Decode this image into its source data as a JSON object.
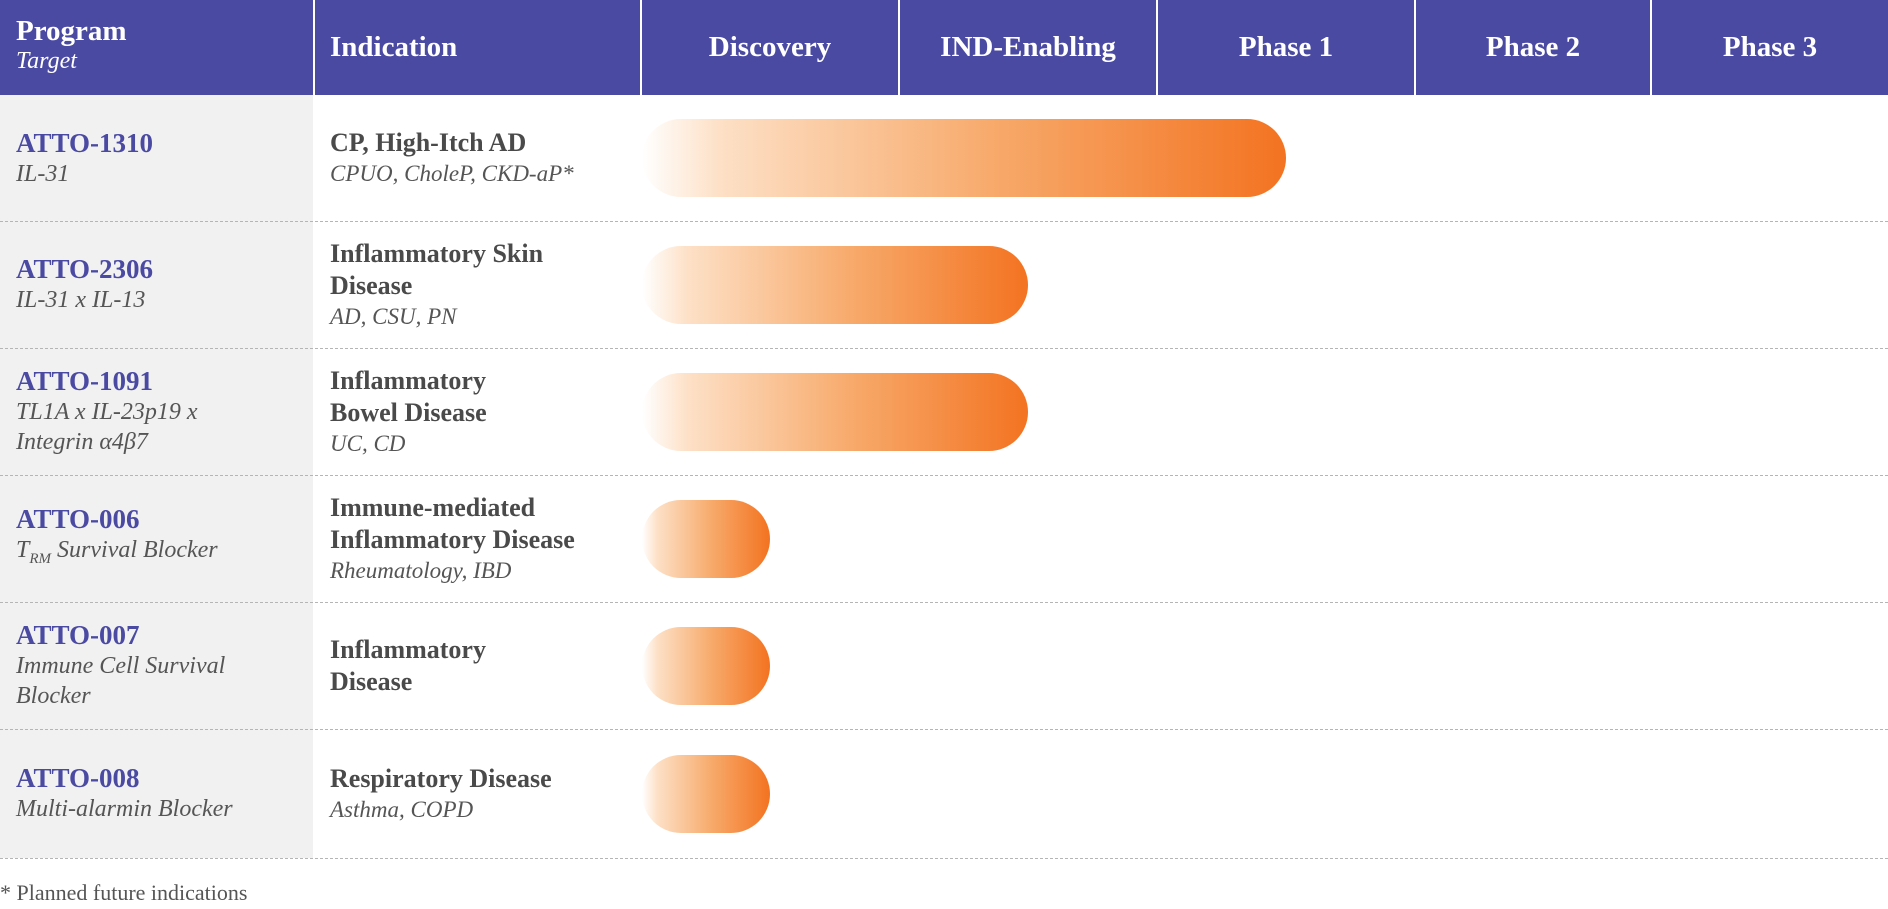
{
  "header": {
    "program_label": "Program",
    "target_label": "Target",
    "indication_label": "Indication"
  },
  "footnote": "* Planned future indications",
  "colors": {
    "header_bg": "#4b4aa3",
    "program_name": "#4b4aa3",
    "bar_start": "#ffffff",
    "bar_end": "#f37321",
    "program_column_bg": "#f1f1f1"
  },
  "chart_data": {
    "type": "bar",
    "orientation": "horizontal",
    "stages": [
      "Discovery",
      "IND-Enabling",
      "Phase 1",
      "Phase 2",
      "Phase 3"
    ],
    "programs": [
      {
        "name": "ATTO-1310",
        "target_lines": [
          "IL-31"
        ],
        "indication_lines": [
          "CP, High-Itch AD"
        ],
        "indication_detail": "CPUO, CholeP, CKD-aP*",
        "progress": 2.5
      },
      {
        "name": "ATTO-2306",
        "target_lines": [
          "IL-31 x IL-13"
        ],
        "indication_lines": [
          "Inflammatory Skin",
          "Disease"
        ],
        "indication_detail": "AD, CSU, PN",
        "progress": 1.5
      },
      {
        "name": "ATTO-1091",
        "target_lines": [
          "TL1A x IL-23p19 x",
          "Integrin α4β7"
        ],
        "indication_lines": [
          "Inflammatory",
          "Bowel Disease"
        ],
        "indication_detail": "UC, CD",
        "progress": 1.5
      },
      {
        "name": "ATTO-006",
        "target_lines": [
          "T",
          "Survival Blocker"
        ],
        "target_subscript": "RM",
        "indication_lines": [
          "Immune-mediated",
          "Inflammatory Disease"
        ],
        "indication_detail": "Rheumatology, IBD",
        "progress": 0.5
      },
      {
        "name": "ATTO-007",
        "target_lines": [
          "Immune Cell Survival",
          "Blocker"
        ],
        "indication_lines": [
          "Inflammatory",
          "Disease"
        ],
        "indication_detail": "",
        "progress": 0.5
      },
      {
        "name": "ATTO-008",
        "target_lines": [
          "Multi-alarmin Blocker"
        ],
        "indication_lines": [
          "Respiratory Disease"
        ],
        "indication_detail": "Asthma, COPD",
        "progress": 0.5
      }
    ]
  }
}
